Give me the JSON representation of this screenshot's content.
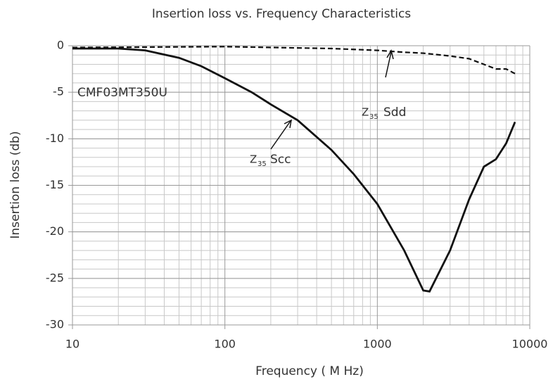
{
  "chart_data": {
    "type": "line",
    "title": "Insertion loss vs. Frequency Characteristics",
    "x_label": "Frequency ( M Hz)",
    "y_label": "Insertion loss (db)",
    "log_x": true,
    "grid": true,
    "minor_grid": true,
    "xlim": [
      10,
      10000
    ],
    "xticks": [
      10,
      100,
      1000,
      10000
    ],
    "ylim": [
      -30,
      0
    ],
    "yticks": [
      0,
      -5,
      -10,
      -15,
      -20,
      -25,
      -30
    ],
    "series": [
      {
        "name": "Scc",
        "color": "#111111",
        "dash": false,
        "x": [
          10,
          20,
          30,
          50,
          70,
          100,
          150,
          200,
          300,
          500,
          700,
          1000,
          1500,
          2000,
          2200,
          3000,
          4000,
          5000,
          6000,
          7000,
          8000
        ],
        "values": [
          -0.3,
          -0.3,
          -0.5,
          -1.3,
          -2.2,
          -3.5,
          -5.0,
          -6.3,
          -8.0,
          -11.2,
          -13.8,
          -17.0,
          -22.0,
          -26.3,
          -26.4,
          -22.0,
          -16.5,
          -13.0,
          -12.2,
          -10.5,
          -8.2
        ]
      },
      {
        "name": "Sdd",
        "color": "#111111",
        "dash": true,
        "x": [
          10,
          100,
          500,
          1000,
          1500,
          2000,
          3000,
          4000,
          5000,
          6000,
          7000,
          8000
        ],
        "values": [
          -0.2,
          -0.1,
          -0.3,
          -0.5,
          -0.7,
          -0.8,
          -1.1,
          -1.4,
          -2.0,
          -2.5,
          -2.5,
          -3.0
        ]
      }
    ],
    "annotations": [
      {
        "text": "CMF03MT350U"
      },
      {
        "main": "Z",
        "sub": "35",
        "text": "Sdd"
      },
      {
        "main": "Z",
        "sub": "35",
        "text": "Scc"
      }
    ]
  }
}
